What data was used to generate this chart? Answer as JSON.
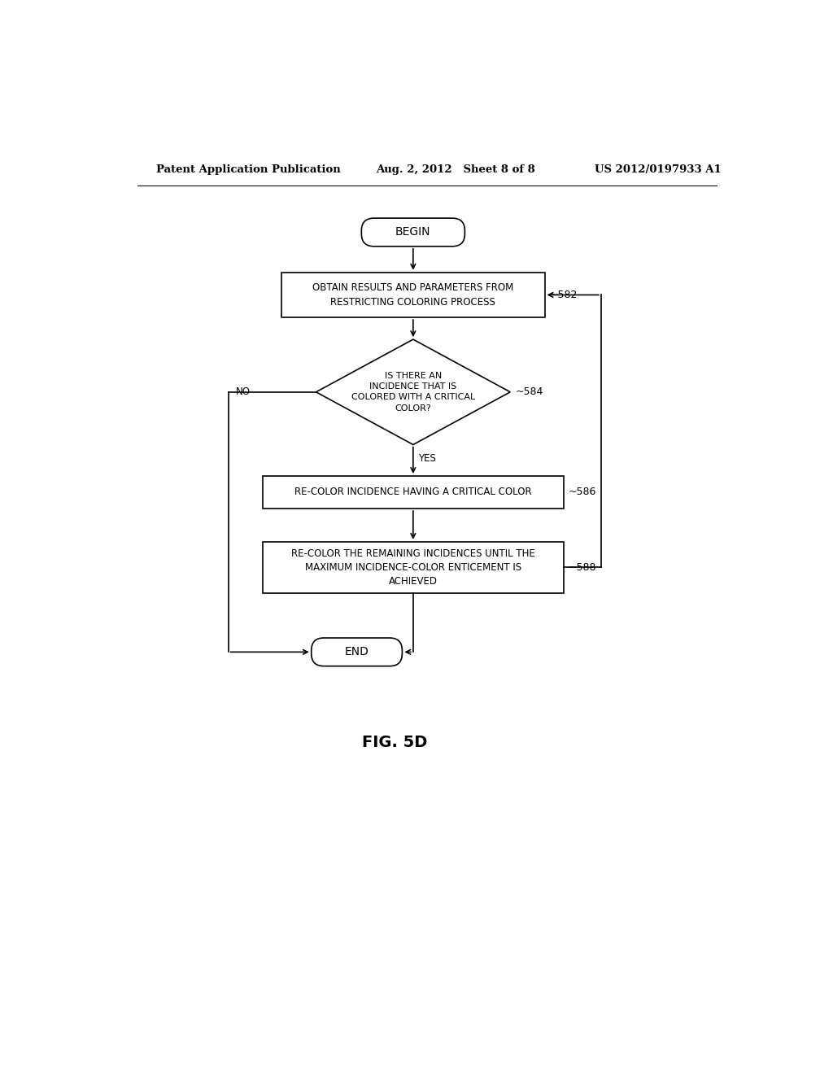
{
  "bg_color": "#ffffff",
  "line_color": "#000000",
  "text_color": "#000000",
  "header_left": "Patent Application Publication",
  "header_mid": "Aug. 2, 2012   Sheet 8 of 8",
  "header_right": "US 2012/0197933 A1",
  "fig_label": "FIG. 5D",
  "begin_text": "BEGIN",
  "end_text": "END",
  "box582_text": "OBTAIN RESULTS AND PARAMETERS FROM\nRESTRICTING COLORING PROCESS",
  "box582_label": "582",
  "diamond584_text": "IS THERE AN\nINCIDENCE THAT IS\nCOLORED WITH A CRITICAL\nCOLOR?",
  "diamond584_label": "584",
  "box586_text": "RE-COLOR INCIDENCE HAVING A CRITICAL COLOR",
  "box586_label": "586",
  "box588_text": "RE-COLOR THE REMAINING INCIDENCES UNTIL THE\nMAXIMUM INCIDENCE-COLOR ENTICEMENT IS\nACHIEVED",
  "box588_label": "588",
  "yes_text": "YES",
  "no_text": "NO",
  "lw": 1.2
}
